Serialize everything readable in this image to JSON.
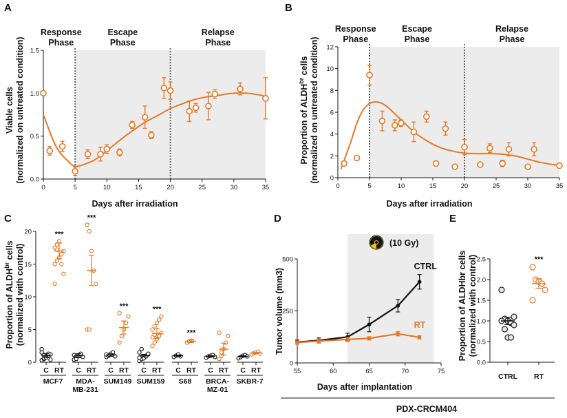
{
  "colors": {
    "orange": "#E87722",
    "black": "#111111",
    "shade": "#ececec",
    "gray": "#808080"
  },
  "chart_data": [
    {
      "panel": "A",
      "type": "scatter",
      "title": "",
      "xlabel": "Days after irradiation",
      "ylabel_line1": "Viable cells",
      "ylabel_line2": "(normalized on untreated condition)",
      "xlim": [
        0,
        35
      ],
      "ylim": [
        0,
        1.5
      ],
      "xticks": [
        0,
        5,
        10,
        15,
        20,
        25,
        30,
        35
      ],
      "yticks": [
        0.0,
        0.5,
        1.0,
        1.5
      ],
      "ytick_labels": [
        "0.0",
        "0.5",
        "1.0",
        "1.5"
      ],
      "shade_x": [
        5,
        35
      ],
      "dashed_x": [
        5,
        20
      ],
      "phases": [
        {
          "line1": "Response",
          "line2": "Phase",
          "at": 2.8
        },
        {
          "line1": "Escape",
          "line2": "Phase",
          "at": 12.5
        },
        {
          "line1": "Relapse",
          "line2": "Phase",
          "at": 27.5
        }
      ],
      "points": [
        {
          "x": 0,
          "y": 1.0,
          "err": 0.0
        },
        {
          "x": 1,
          "y": 0.33,
          "err": 0.05
        },
        {
          "x": 3,
          "y": 0.38,
          "err": 0.06
        },
        {
          "x": 5,
          "y": 0.09,
          "err": 0.05
        },
        {
          "x": 7,
          "y": 0.29,
          "err": 0.05
        },
        {
          "x": 9,
          "y": 0.29,
          "err": 0.08
        },
        {
          "x": 10,
          "y": 0.35,
          "err": 0.05
        },
        {
          "x": 12,
          "y": 0.31,
          "err": 0.04
        },
        {
          "x": 14,
          "y": 0.63,
          "err": 0.04
        },
        {
          "x": 16,
          "y": 0.72,
          "err": 0.13
        },
        {
          "x": 17,
          "y": 0.51,
          "err": 0.04
        },
        {
          "x": 19,
          "y": 1.06,
          "err": 0.12
        },
        {
          "x": 20,
          "y": 1.03,
          "err": 0.1
        },
        {
          "x": 23,
          "y": 0.79,
          "err": 0.12
        },
        {
          "x": 24,
          "y": 0.83,
          "err": 0.05
        },
        {
          "x": 26,
          "y": 0.85,
          "err": 0.16
        },
        {
          "x": 27,
          "y": 0.99,
          "err": 0.05
        },
        {
          "x": 31,
          "y": 1.05,
          "err": 0.07
        },
        {
          "x": 35,
          "y": 0.94,
          "err": 0.24
        }
      ],
      "fit": {
        "x": [
          0,
          2,
          4,
          5,
          6,
          8,
          10,
          12,
          14,
          16,
          18,
          20,
          22,
          24,
          26,
          28,
          30,
          32,
          34,
          35
        ],
        "y": [
          0.75,
          0.38,
          0.2,
          0.15,
          0.16,
          0.22,
          0.33,
          0.45,
          0.56,
          0.66,
          0.74,
          0.82,
          0.88,
          0.93,
          0.96,
          0.98,
          1.0,
          1.0,
          0.98,
          0.96
        ]
      }
    },
    {
      "panel": "B",
      "type": "scatter",
      "title": "",
      "xlabel": "Days after irradiation",
      "ylabel_line1_pre": "Proportion of ALDH",
      "ylabel_line1_sup": "br",
      "ylabel_line1_post": " cells",
      "ylabel_line2": "(normalized on untreated condition)",
      "xlim": [
        0,
        35
      ],
      "ylim": [
        0,
        12
      ],
      "xticks": [
        0,
        5,
        10,
        15,
        20,
        25,
        30,
        35
      ],
      "yticks": [
        0,
        2,
        4,
        6,
        8,
        10,
        12
      ],
      "ytick_labels": [
        "0",
        "2",
        "4",
        "6",
        "8",
        "10",
        "12"
      ],
      "shade_x": [
        5,
        35
      ],
      "dashed_x": [
        5,
        20
      ],
      "phases": [
        {
          "line1": "Response",
          "line2": "Phase",
          "at": 2.8
        },
        {
          "line1": "Escape",
          "line2": "Phase",
          "at": 12.5
        },
        {
          "line1": "Relapse",
          "line2": "Phase",
          "at": 27.5
        }
      ],
      "points": [
        {
          "x": 1,
          "y": 1.3,
          "err": 0.0
        },
        {
          "x": 3,
          "y": 1.8,
          "err": 0.0
        },
        {
          "x": 5,
          "y": 9.4,
          "err": 0.9
        },
        {
          "x": 7,
          "y": 5.2,
          "err": 0.9
        },
        {
          "x": 9,
          "y": 4.8,
          "err": 0.5
        },
        {
          "x": 10,
          "y": 5.0,
          "err": 0.3
        },
        {
          "x": 12,
          "y": 4.2,
          "err": 0.9
        },
        {
          "x": 14,
          "y": 5.6,
          "err": 0.5
        },
        {
          "x": 15.5,
          "y": 1.3,
          "err": 0.2
        },
        {
          "x": 17,
          "y": 4.5,
          "err": 0.6
        },
        {
          "x": 18.5,
          "y": 1.0,
          "err": 0.0
        },
        {
          "x": 20,
          "y": 2.8,
          "err": 0.7
        },
        {
          "x": 22.5,
          "y": 1.2,
          "err": 0.0
        },
        {
          "x": 24,
          "y": 2.7,
          "err": 0.4
        },
        {
          "x": 26,
          "y": 1.3,
          "err": 0.3
        },
        {
          "x": 27,
          "y": 2.6,
          "err": 0.6
        },
        {
          "x": 30,
          "y": 1.0,
          "err": 0.0
        },
        {
          "x": 31,
          "y": 2.6,
          "err": 0.6
        },
        {
          "x": 35,
          "y": 1.1,
          "err": 0.0
        }
      ],
      "fit": {
        "x": [
          0.5,
          2,
          3,
          4,
          5,
          6,
          7,
          8,
          10,
          12,
          14,
          16,
          18,
          20,
          22,
          24,
          26,
          28,
          30,
          32,
          34,
          35
        ],
        "y": [
          0.8,
          3.2,
          5.0,
          6.2,
          6.8,
          6.95,
          6.8,
          6.4,
          5.3,
          4.2,
          3.4,
          2.8,
          2.45,
          2.25,
          2.2,
          2.2,
          2.15,
          2.0,
          1.7,
          1.4,
          1.2,
          1.15
        ]
      }
    },
    {
      "panel": "C",
      "type": "dot_plot",
      "ylabel_line1_pre": "Proportion of ALDH",
      "ylabel_line1_sup": "br",
      "ylabel_line1_post": " cells",
      "ylabel_line2": "(normalized with control)",
      "ylim": [
        0,
        20
      ],
      "yticks": [
        0,
        5,
        10,
        15,
        20
      ],
      "ytick_labels": [
        "0",
        "5",
        "10",
        "15",
        "20"
      ],
      "group_label_c": "C",
      "group_label_rt": "RT",
      "cell_lines": [
        {
          "name": "MCF7",
          "name2": "",
          "sig": "***",
          "c": [
            0.3,
            0.5,
            0.8,
            1.0,
            1.2,
            1.5,
            0.6,
            0.9,
            1.3,
            0.4,
            2.0,
            1.1,
            0.7
          ],
          "c_mean": 1.0,
          "c_err": 0.3,
          "rt": [
            15.0,
            15.5,
            16.0,
            16.5,
            17.0,
            17.5,
            18.0,
            18.5,
            15.0,
            13.5,
            12.0,
            17.2
          ],
          "rt_mean": 17.0,
          "rt_err": 1.2
        },
        {
          "name": "MDA-",
          "name2": "MB-231",
          "sig": "***",
          "c": [
            0.4,
            0.7,
            1.0,
            1.3,
            0.8,
            1.1,
            0.5
          ],
          "c_mean": 1.0,
          "c_err": 0.3,
          "rt": [
            21.0,
            20.0,
            17.0,
            14.0,
            12.0,
            5.0,
            5.0
          ],
          "rt_mean": 14.0,
          "rt_err": 2.3
        },
        {
          "name": "SUM149",
          "name2": "",
          "sig": "***",
          "c": [
            0.8,
            1.0,
            1.3,
            1.5,
            0.9,
            1.2
          ],
          "c_mean": 1.1,
          "c_err": 0.2,
          "rt": [
            3.0,
            4.0,
            5.0,
            6.0,
            7.0,
            7.5
          ],
          "rt_mean": 5.3,
          "rt_err": 1.0
        },
        {
          "name": "SUM159",
          "name2": "",
          "sig": "***",
          "c": [
            0.2,
            0.5,
            0.8,
            1.0,
            1.2,
            1.5,
            2.0,
            0.6,
            0.9,
            1.3,
            0.7
          ],
          "c_mean": 1.0,
          "c_err": 0.2,
          "rt": [
            2.5,
            3.0,
            3.5,
            4.0,
            4.5,
            5.0,
            5.5,
            6.0,
            6.5,
            7.0,
            3.8,
            4.2
          ],
          "rt_mean": 4.4,
          "rt_err": 0.8
        },
        {
          "name": "S68",
          "name2": "",
          "sig": "***",
          "c": [
            0.8,
            1.0,
            1.2,
            0.9
          ],
          "c_mean": 1.0,
          "c_err": 0.1,
          "rt": [
            3.0,
            3.2,
            3.3
          ],
          "rt_mean": 3.2,
          "rt_err": 0.2
        },
        {
          "name": "BRCA-",
          "name2": "MZ-01",
          "sig": "",
          "c": [
            0.7,
            0.9,
            1.0,
            1.1,
            0.8
          ],
          "c_mean": 0.9,
          "c_err": 0.1,
          "rt": [
            0.5,
            1.0,
            2.0,
            3.0,
            4.0,
            4.5,
            1.5
          ],
          "rt_mean": 2.0,
          "rt_err": 0.9
        },
        {
          "name": "SKBR-7",
          "name2": "",
          "sig": "",
          "c": [
            0.6,
            0.8,
            1.0,
            1.1,
            0.9
          ],
          "c_mean": 0.9,
          "c_err": 0.1,
          "rt": [
            1.2,
            1.4,
            1.5,
            1.6,
            1.3
          ],
          "rt_mean": 1.4,
          "rt_err": 0.1
        }
      ]
    },
    {
      "panel": "D",
      "type": "line",
      "xlabel": "Days after implantation",
      "ylabel": "Tumor volume (mm3)",
      "xlim": [
        55,
        75
      ],
      "ylim": [
        0,
        500
      ],
      "xticks": [
        55,
        60,
        65,
        70,
        75
      ],
      "yticks": [
        0,
        250,
        500
      ],
      "ytick_labels": [
        "0",
        "250",
        "500"
      ],
      "shade_x": [
        62,
        74
      ],
      "dose_label": "(10 Gy)",
      "footer": "PDX-CRCM404",
      "series": [
        {
          "name": "CTRL",
          "color_key": "black",
          "x": [
            55,
            58,
            62,
            65,
            69,
            72
          ],
          "y": [
            100,
            108,
            125,
            185,
            275,
            390
          ],
          "err": [
            10,
            12,
            18,
            35,
            30,
            35
          ]
        },
        {
          "name": "RT",
          "color_key": "orange",
          "x": [
            55,
            58,
            62,
            65,
            69,
            72
          ],
          "y": [
            98,
            105,
            113,
            118,
            140,
            123
          ],
          "err": [
            8,
            8,
            10,
            8,
            10,
            8
          ]
        }
      ]
    },
    {
      "panel": "E",
      "type": "dot_plot",
      "ylabel_line1": "Proportion of ALDHbr cells",
      "ylabel_line2": "(normalized with control)",
      "ylim": [
        0,
        2.5
      ],
      "yticks": [
        0.0,
        0.5,
        1.0,
        1.5,
        2.0,
        2.5
      ],
      "ytick_labels": [
        "0.0",
        "0.5",
        "1.0",
        "1.5",
        "2.0",
        "2.5"
      ],
      "sig": "***",
      "groups": [
        {
          "name": "CTRL",
          "color_key": "gray",
          "values": [
            1.75,
            1.05,
            1.0,
            0.95,
            0.9,
            1.0,
            0.8,
            0.6,
            0.6,
            1.1
          ],
          "mean": 1.0,
          "err": 0.09
        },
        {
          "name": "RT",
          "color_key": "orange",
          "values": [
            2.3,
            2.0,
            1.95,
            1.9,
            1.75,
            1.5
          ],
          "mean": 1.9,
          "err": 0.12
        }
      ]
    }
  ]
}
